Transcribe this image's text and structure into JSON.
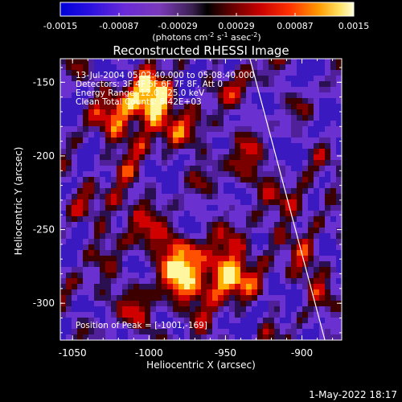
{
  "colorbar": {
    "ticks": [
      "-0.0015",
      "-0.00087",
      "-0.00029",
      "0.00029",
      "0.00087",
      "0.0015"
    ],
    "unit_main": "(photons cm",
    "unit_sup1": "-2",
    "unit_mid": " s",
    "unit_sup2": "-1",
    "unit_mid2": " asec",
    "unit_sup3": "-2",
    "unit_end": ")"
  },
  "annotations": {
    "line1": "13-Jul-2004 05:02:40.000 to 05:08:40.000",
    "line2": "Detectors: 3F 4F 5F 6F 7F 8F, Att 0",
    "line3": "Energy Range: 12.0 - 25.0 keV",
    "line4": "Clean    Total Counts: 8.42E+03",
    "peak": "Position of Peak = [-1001,-169]"
  },
  "timestamp": "1-May-2022 18:17",
  "chart_data": {
    "type": "heatmap",
    "title": "Reconstructed RHESSI Image",
    "xlabel": "Heliocentric X (arcsec)",
    "ylabel": "Heliocentric Y (arcsec)",
    "xlim": [
      -1058,
      -874
    ],
    "ylim": [
      -325,
      -134
    ],
    "x_ticks": [
      -1050,
      -1000,
      -950,
      -900
    ],
    "y_ticks": [
      -150,
      -200,
      -250,
      -300
    ],
    "x_tick_labels": [
      "-1050",
      "-1000",
      "-950",
      "-900"
    ],
    "y_tick_labels": [
      "-150",
      "-200",
      "-250",
      "-300"
    ],
    "color_range": [
      -0.0015,
      0.0015
    ],
    "limb_line": [
      {
        "x": -934,
        "y": -134
      },
      {
        "x": -885,
        "y": -325
      }
    ],
    "peak_position": [
      -1001,
      -169
    ]
  }
}
